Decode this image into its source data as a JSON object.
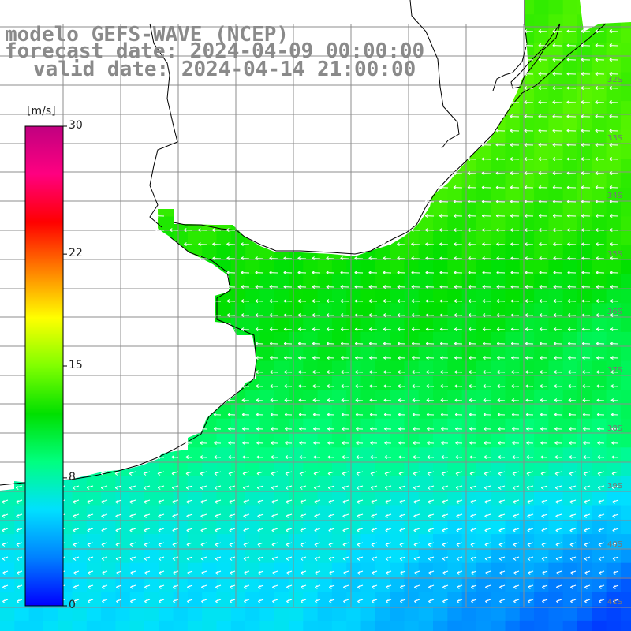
{
  "title": {
    "line1": "modelo GEFS-WAVE (NCEP)",
    "line2": "forecast date: 2024-04-09 00:00:00",
    "line3": "valid date: 2024-04-14 21:00:00"
  },
  "colorbar": {
    "unit": "[m/s]",
    "min": 0,
    "max": 30,
    "ticks": [
      {
        "value": 30,
        "label": "30"
      },
      {
        "value": 22,
        "label": "22"
      },
      {
        "value": 15,
        "label": "15"
      },
      {
        "value": 8,
        "label": "8"
      },
      {
        "value": 0,
        "label": "0"
      }
    ],
    "colors": [
      "#0000ff",
      "#0080ff",
      "#00e0ff",
      "#00ff80",
      "#00e000",
      "#80ff00",
      "#ffff00",
      "#ff8000",
      "#ff0000",
      "#ff0080",
      "#c00080"
    ]
  },
  "map": {
    "lon_range": [
      -58,
      -47
    ],
    "lat_range": [
      -41.5,
      -31
    ],
    "lat_labels": [
      "32S",
      "33S",
      "34S",
      "35S",
      "36S",
      "37S",
      "38S",
      "39S",
      "40S",
      "41S"
    ],
    "land_color": "#ffffff",
    "grid_color": "#8c8c8c",
    "coast_color": "#000000",
    "vector_color": "#ffffff"
  },
  "chart_data": {
    "type": "heatmap",
    "variable": "wind speed",
    "unit": "m/s",
    "wind_speed_by_lat": [
      {
        "lat": -31.5,
        "speed": 13.5
      },
      {
        "lat": -32.5,
        "speed": 13.8
      },
      {
        "lat": -33.5,
        "speed": 13.5
      },
      {
        "lat": -34.5,
        "speed": 13.0
      },
      {
        "lat": -35.5,
        "speed": 12.0
      },
      {
        "lat": -36.5,
        "speed": 11.5
      },
      {
        "lat": -37.5,
        "speed": 10.5
      },
      {
        "lat": -38.5,
        "speed": 9.0
      },
      {
        "lat": -39.5,
        "speed": 7.5
      },
      {
        "lat": -40.5,
        "speed": 6.5
      },
      {
        "lat": -41.0,
        "speed": 6.0
      }
    ],
    "wind_direction": "easterly (vectors pointing west)"
  }
}
